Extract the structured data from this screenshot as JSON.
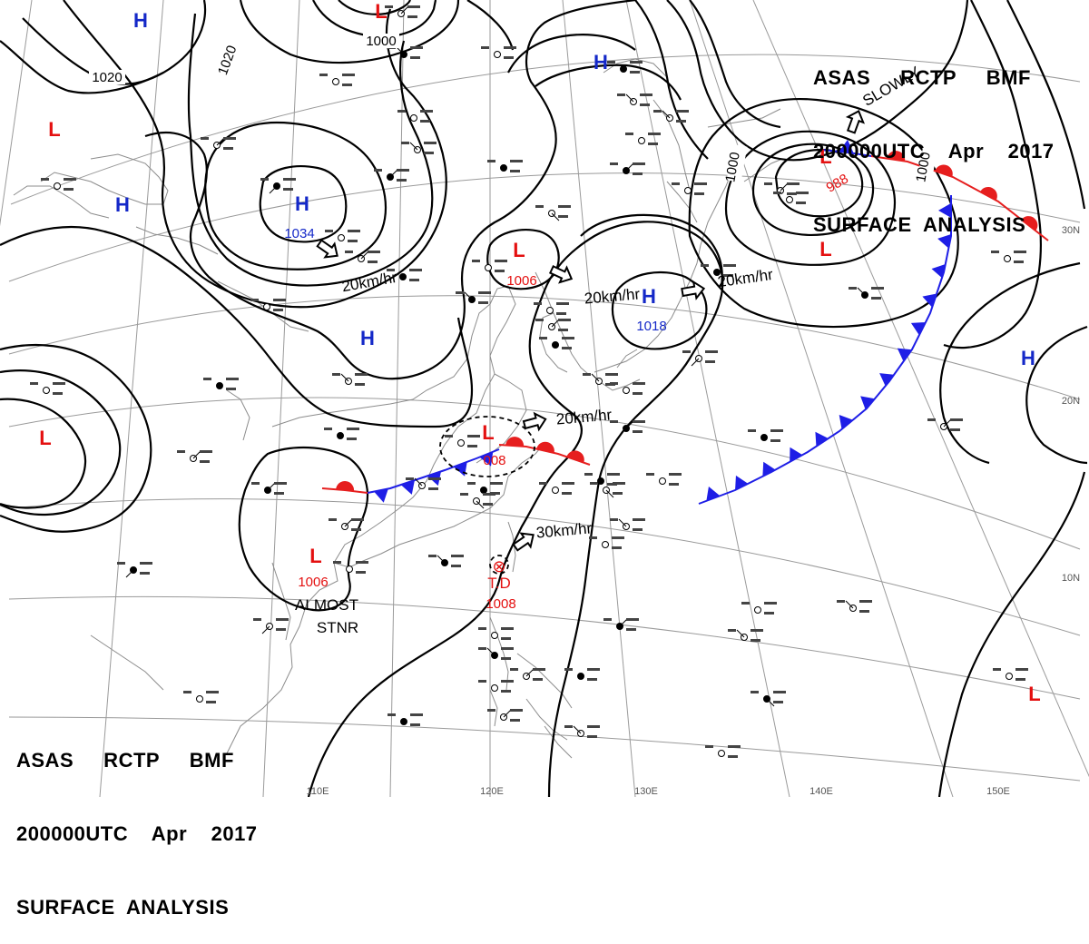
{
  "header": {
    "line1": "ASAS     RCTP     BMF",
    "line2": "200000UTC    Apr    2017",
    "line3": "SURFACE  ANALYSIS"
  },
  "colors": {
    "high": "#1428c8",
    "low": "#e41010",
    "cold_front": "#1e1ee6",
    "warm_front": "#e61e1e",
    "isobar": "#000000",
    "grid": "#9a9a9a",
    "coast": "#8c8c8c"
  },
  "pressure_centers": [
    {
      "type": "H",
      "value": ""
    },
    {
      "type": "L",
      "value": ""
    },
    {
      "type": "H",
      "value": ""
    },
    {
      "type": "L",
      "value": ""
    },
    {
      "type": "H",
      "value": "1034"
    },
    {
      "type": "H",
      "value": ""
    },
    {
      "type": "L",
      "value": "988"
    },
    {
      "type": "L",
      "value": ""
    },
    {
      "type": "L",
      "value": "1006"
    },
    {
      "type": "H",
      "value": "1018"
    },
    {
      "type": "H",
      "value": ""
    },
    {
      "type": "L",
      "value": ""
    },
    {
      "type": "L",
      "value": "008"
    },
    {
      "type": "L",
      "value": "1006"
    },
    {
      "type": "L",
      "value": ""
    },
    {
      "type": "H",
      "value": ""
    }
  ],
  "tropical_depression": {
    "label": "T.D",
    "value": "1008"
  },
  "isobar_labels": [
    "1020",
    "1020",
    "1000",
    "1000",
    "1000"
  ],
  "motion_labels": [
    "20km/hr",
    "20km/hr",
    "20km/hr",
    "20km/hr",
    "30km/hr"
  ],
  "annotations": [
    "ALMOST",
    "STNR",
    "SLOWLY"
  ],
  "longitude_labels": [
    "110E",
    "120E",
    "130E",
    "140E",
    "150E"
  ],
  "latitude_labels": [
    "30N",
    "20N",
    "10N"
  ]
}
